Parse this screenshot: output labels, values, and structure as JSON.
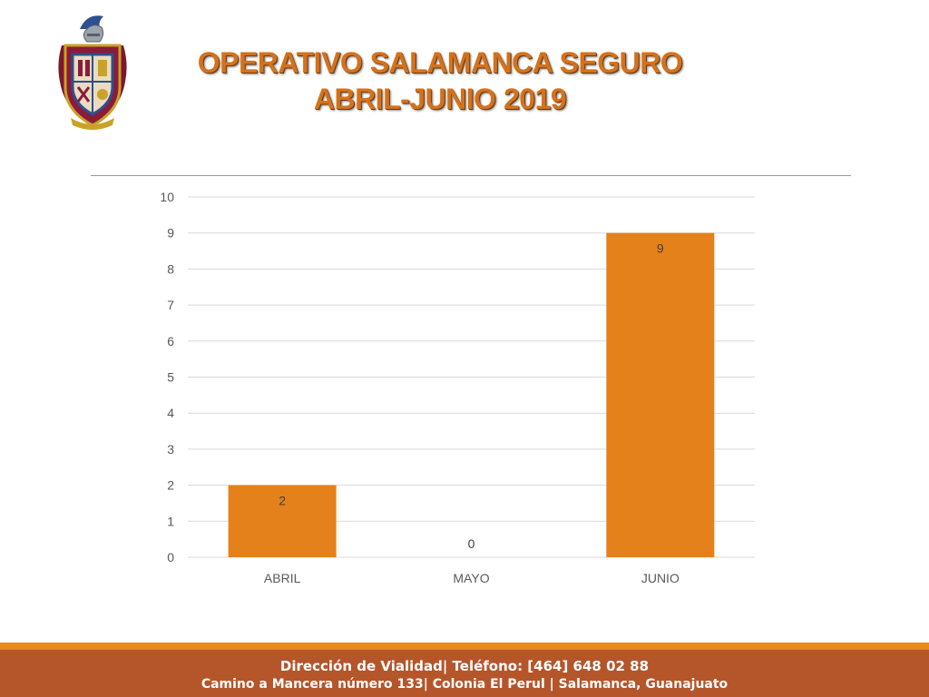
{
  "slide": {
    "title_line1": "OPERATIVO SALAMANCA SEGURO",
    "title_line2": "ABRIL-JUNIO 2019"
  },
  "footer": {
    "line1": "Dirección de Vialidad| Teléfono: [464] 648 02 88",
    "line2": "Camino a Mancera número 133| Colonia El Perul | Salamanca, Guanajuato"
  },
  "colors": {
    "title": "#D4721C",
    "bar": "#E5811A",
    "footer_band": "#B5552A",
    "footer_line": "#E8891E"
  },
  "icons": {
    "logo": "municipal-coat-of-arms-icon"
  },
  "chart_data": {
    "type": "bar",
    "categories": [
      "ABRIL",
      "MAYO",
      "JUNIO"
    ],
    "values": [
      2,
      0,
      9
    ],
    "data_labels": [
      "2",
      "0",
      "9"
    ],
    "yticks": [
      0,
      1,
      2,
      3,
      4,
      5,
      6,
      7,
      8,
      9,
      10
    ],
    "ylim": [
      0,
      10
    ],
    "grid": true,
    "legend": "none"
  }
}
